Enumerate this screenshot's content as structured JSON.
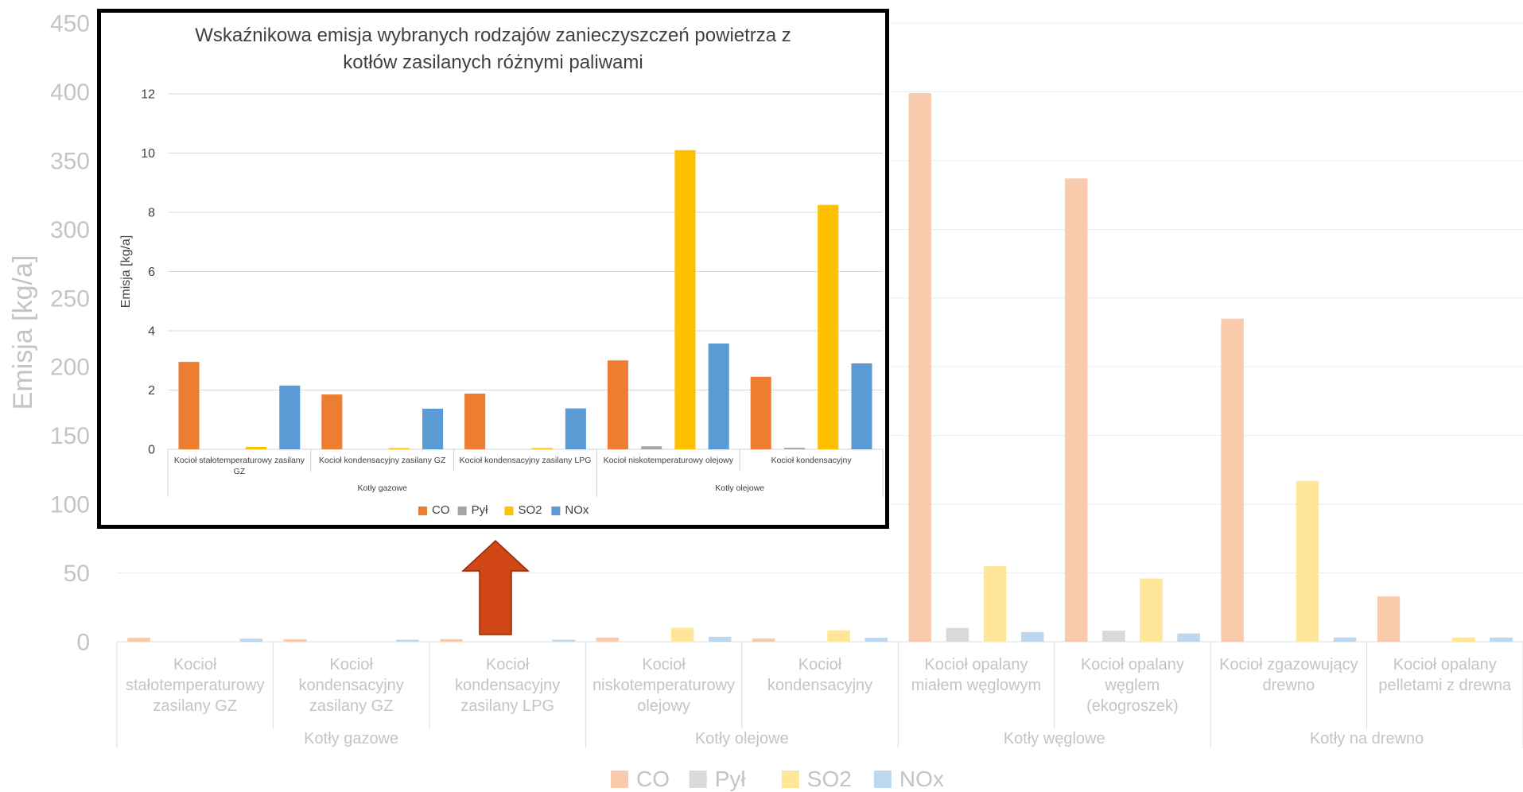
{
  "background_chart": {
    "chart_data": {
      "type": "bar",
      "title": "",
      "ylabel": "Emisja [kg/a]",
      "ylim": [
        0,
        450
      ],
      "yticks": [
        "0",
        "50",
        "100",
        "150",
        "200",
        "250",
        "300",
        "350",
        "400",
        "450"
      ],
      "categories": [
        "Kocioł stałotemperaturowy zasilany GZ",
        "Kocioł kondensacyjny zasilany GZ",
        "Kocioł kondensacyjny zasilany LPG",
        "Kocioł niskotemperaturowy olejowy",
        "Kocioł kondensacyjny",
        "Kocioł opalany miałem węglowym",
        "Kocioł opalany węglem (ekogroszek)",
        "Kocioł zgazowujący drewno",
        "Kocioł opalany pelletami z drewna"
      ],
      "category_lines": [
        [
          "Kocioł",
          "stałotemperaturowy",
          "zasilany GZ"
        ],
        [
          "Kocioł",
          "kondensacyjny",
          "zasilany GZ"
        ],
        [
          "Kocioł",
          "kondensacyjny",
          "zasilany LPG"
        ],
        [
          "Kocioł",
          "niskotemperaturowy",
          "olejowy"
        ],
        [
          "Kocioł",
          "kondensacyjny"
        ],
        [
          "Kocioł opalany",
          "miałem węglowym"
        ],
        [
          "Kocioł opalany",
          "węglem",
          "(ekogroszek)"
        ],
        [
          "Kocioł zgazowujący",
          "drewno"
        ],
        [
          "Kocioł opalany",
          "pelletami z drewna"
        ]
      ],
      "groups": [
        {
          "name": "Kotły gazowe",
          "count": 3
        },
        {
          "name": "Kotły olejowe",
          "count": 2
        },
        {
          "name": "Kotły węglowe",
          "count": 2
        },
        {
          "name": "Kotły na drewno",
          "count": 2
        }
      ],
      "series": [
        {
          "name": "CO",
          "color": "#f8cbad",
          "values": [
            2.9,
            1.8,
            1.9,
            3.0,
            2.4,
            399,
            337,
            235,
            33
          ]
        },
        {
          "name": "Pył",
          "color": "#d9d9d9",
          "values": [
            0,
            0,
            0,
            0.1,
            0.05,
            10,
            8,
            0,
            0
          ]
        },
        {
          "name": "SO2",
          "color": "#ffe699",
          "values": [
            0.1,
            0.05,
            0.05,
            10.1,
            8.3,
            55,
            46,
            117,
            3
          ]
        },
        {
          "name": "NOx",
          "color": "#bdd7ee",
          "values": [
            2.2,
            1.4,
            1.4,
            3.6,
            2.9,
            7,
            6,
            3,
            3
          ]
        }
      ],
      "legend": "bottom",
      "grid": true
    }
  },
  "inset_chart": {
    "chart_data": {
      "type": "bar",
      "title": "Wskaźnikowa emisja wybranych rodzajów zanieczyszczeń powietrza z\nkotłów zasilanych różnymi paliwami",
      "ylabel": "Emisja [kg/a]",
      "ylim": [
        0,
        12
      ],
      "yticks": [
        "0",
        "2",
        "4",
        "6",
        "8",
        "10",
        "12"
      ],
      "categories": [
        "Kocioł stałotemperaturowy zasilany GZ",
        "Kocioł kondensacyjny zasilany GZ",
        "Kocioł kondensacyjny zasilany LPG",
        "Kocioł niskotemperaturowy olejowy",
        "Kocioł kondensacyjny"
      ],
      "category_lines": [
        [
          "Kocioł stałotemperaturowy zasilany",
          "GZ"
        ],
        [
          "Kocioł kondensacyjny zasilany GZ"
        ],
        [
          "Kocioł kondensacyjny zasilany LPG"
        ],
        [
          "Kocioł niskotemperaturowy olejowy"
        ],
        [
          "Kocioł kondensacyjny"
        ]
      ],
      "groups": [
        {
          "name": "Kotły gazowe",
          "count": 3
        },
        {
          "name": "Kotły olejowe",
          "count": 2
        }
      ],
      "series": [
        {
          "name": "CO",
          "color": "#ed7d31",
          "values": [
            2.95,
            1.85,
            1.88,
            3.0,
            2.45
          ]
        },
        {
          "name": "Pył",
          "color": "#a5a5a5",
          "values": [
            0,
            0,
            0,
            0.1,
            0.05
          ]
        },
        {
          "name": "SO2",
          "color": "#ffc000",
          "values": [
            0.08,
            0.04,
            0.04,
            10.1,
            8.25
          ]
        },
        {
          "name": "NOx",
          "color": "#5b9bd5",
          "values": [
            2.15,
            1.37,
            1.38,
            3.57,
            2.9
          ]
        }
      ],
      "legend": "bottom",
      "grid": true
    }
  },
  "annotation": {
    "arrow_color": "#d14615",
    "arrow_icon": "up-arrow-icon"
  }
}
